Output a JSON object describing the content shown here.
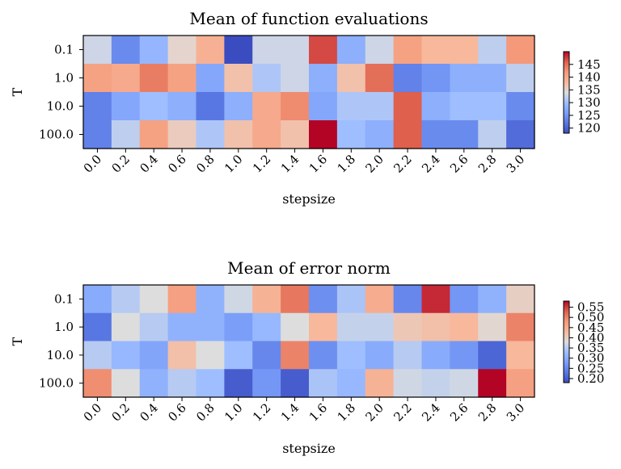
{
  "chart_data": [
    {
      "type": "heatmap",
      "title": "Mean of function evaluations",
      "xlabel": "stepsize",
      "ylabel": "T",
      "x_categories": [
        "0.0",
        "0.2",
        "0.4",
        "0.6",
        "0.8",
        "1.0",
        "1.2",
        "1.4",
        "1.6",
        "1.8",
        "2.0",
        "2.2",
        "2.4",
        "2.6",
        "2.8",
        "3.0"
      ],
      "y_categories": [
        "0.1",
        "1.0",
        "10.0",
        "100.0"
      ],
      "colormap": "coolwarm",
      "vmin": 118,
      "vmax": 150,
      "colorbar_ticks": [
        "120",
        "125",
        "130",
        "135",
        "140",
        "145"
      ],
      "colorbar_tick_values": [
        120,
        125,
        130,
        135,
        140,
        145
      ],
      "values": [
        [
          133,
          124,
          129,
          135,
          139,
          118,
          133,
          133,
          147,
          128,
          133,
          141,
          138,
          138,
          132,
          142
        ],
        [
          141,
          140,
          144,
          141,
          127,
          137,
          131,
          133,
          128,
          137,
          145,
          123,
          125,
          128,
          128,
          132
        ],
        [
          123,
          127,
          130,
          128,
          122,
          128,
          140,
          143,
          127,
          131,
          131,
          146,
          128,
          130,
          130,
          124
        ],
        [
          123,
          132,
          141,
          136,
          131,
          137,
          140,
          137,
          150,
          130,
          128,
          146,
          124,
          124,
          132,
          121
        ]
      ]
    },
    {
      "type": "heatmap",
      "title": "Mean of error norm",
      "xlabel": "stepsize",
      "ylabel": "T",
      "x_categories": [
        "0.0",
        "0.2",
        "0.4",
        "0.6",
        "0.8",
        "1.0",
        "1.2",
        "1.4",
        "1.6",
        "1.8",
        "2.0",
        "2.2",
        "2.4",
        "2.6",
        "2.8",
        "3.0"
      ],
      "y_categories": [
        "0.1",
        "1.0",
        "10.0",
        "100.0"
      ],
      "colormap": "coolwarm",
      "vmin": 0.18,
      "vmax": 0.58,
      "colorbar_ticks": [
        "0.20",
        "0.25",
        "0.30",
        "0.35",
        "0.40",
        "0.45",
        "0.50",
        "0.55"
      ],
      "colorbar_tick_values": [
        0.2,
        0.25,
        0.3,
        0.35,
        0.4,
        0.45,
        0.5,
        0.55
      ],
      "values": [
        [
          0.3,
          0.35,
          0.38,
          0.47,
          0.31,
          0.37,
          0.44,
          0.51,
          0.26,
          0.34,
          0.45,
          0.25,
          0.56,
          0.27,
          0.31,
          0.4
        ],
        [
          0.23,
          0.38,
          0.35,
          0.31,
          0.31,
          0.28,
          0.32,
          0.38,
          0.43,
          0.36,
          0.36,
          0.41,
          0.42,
          0.43,
          0.39,
          0.5
        ],
        [
          0.35,
          0.32,
          0.29,
          0.42,
          0.38,
          0.33,
          0.25,
          0.5,
          0.26,
          0.33,
          0.3,
          0.35,
          0.3,
          0.27,
          0.21,
          0.43
        ],
        [
          0.49,
          0.38,
          0.31,
          0.35,
          0.33,
          0.2,
          0.27,
          0.2,
          0.34,
          0.32,
          0.44,
          0.37,
          0.36,
          0.37,
          0.58,
          0.47
        ]
      ]
    }
  ]
}
